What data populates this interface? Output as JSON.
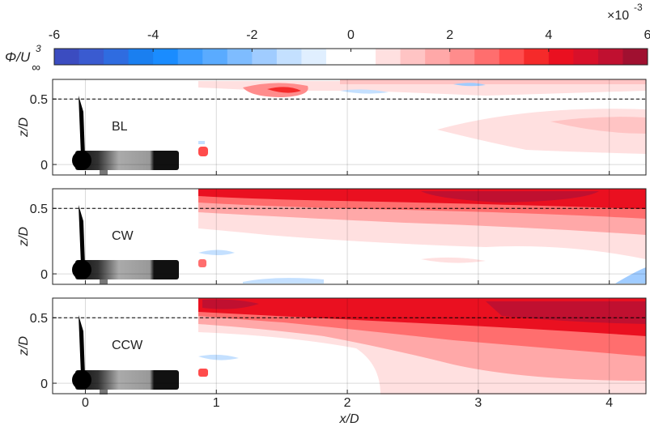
{
  "colorbar": {
    "label_main": "Φ/U",
    "label_sup": "3",
    "label_sub": "∞",
    "exponent_base": "×10",
    "exponent": "-3",
    "lim": [
      -6,
      6
    ],
    "ticks": [
      -6,
      -4,
      -2,
      0,
      2,
      4,
      6
    ],
    "colors": [
      "#3b4cc0",
      "#3a5bd0",
      "#2f6ce0",
      "#1a7ff0",
      "#1a8cff",
      "#3c9cff",
      "#5aabff",
      "#7ebcff",
      "#a0ccff",
      "#c4e0ff",
      "#e0efff",
      "#ffffff",
      "#ffffff",
      "#ffe0e0",
      "#ffc4c4",
      "#ffa8a8",
      "#ff8c8c",
      "#ff6e6e",
      "#ff4c4c",
      "#f52a2a",
      "#ea1020",
      "#d8102a",
      "#c01030",
      "#a01030"
    ]
  },
  "chart_data": [
    {
      "type": "contour",
      "label": "BL",
      "ylabel": "z/D",
      "xlim": [
        -0.25,
        4.28
      ],
      "ylim": [
        -0.08,
        0.65
      ],
      "xticks": [
        0,
        1,
        2,
        3,
        4
      ],
      "yticks": [
        0,
        0.5
      ],
      "ref_line": 0.5,
      "grid": true
    },
    {
      "type": "contour",
      "label": "CW",
      "ylabel": "z/D",
      "xlim": [
        -0.25,
        4.28
      ],
      "ylim": [
        -0.08,
        0.65
      ],
      "xticks": [
        0,
        1,
        2,
        3,
        4
      ],
      "yticks": [
        0,
        0.5
      ],
      "ref_line": 0.5,
      "grid": true
    },
    {
      "type": "contour",
      "label": "CCW",
      "ylabel": "z/D",
      "xlabel": "x/D",
      "xlim": [
        -0.25,
        4.28
      ],
      "ylim": [
        -0.08,
        0.65
      ],
      "xticks": [
        0,
        1,
        2,
        3,
        4
      ],
      "yticks": [
        0,
        0.5
      ],
      "ref_line": 0.5,
      "grid": true
    }
  ]
}
